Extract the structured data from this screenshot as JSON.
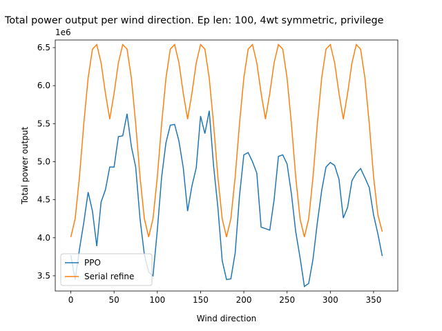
{
  "chart_data": {
    "type": "line",
    "title": "Total power output per wind direction. Ep len: 100, 4wt symmetric, privilege",
    "x_label": "Wind direction",
    "y_label": "Total power output",
    "y_offset_label": "1e6",
    "x": [
      0,
      5,
      10,
      15,
      20,
      25,
      30,
      35,
      40,
      45,
      50,
      55,
      60,
      65,
      70,
      75,
      80,
      85,
      90,
      95,
      100,
      105,
      110,
      115,
      120,
      125,
      130,
      135,
      140,
      145,
      150,
      155,
      160,
      165,
      170,
      175,
      180,
      185,
      190,
      195,
      200,
      205,
      210,
      215,
      220,
      225,
      230,
      235,
      240,
      245,
      250,
      255,
      260,
      265,
      270,
      275,
      280,
      285,
      290,
      295,
      300,
      305,
      310,
      315,
      320,
      325,
      330,
      335,
      340,
      345,
      350,
      355,
      360
    ],
    "series": [
      {
        "name": "PPO",
        "color": "#1f77b4",
        "values": [
          3.77,
          3.45,
          3.85,
          4.2,
          4.6,
          4.35,
          3.89,
          4.47,
          4.63,
          4.93,
          4.93,
          5.33,
          5.34,
          5.63,
          5.2,
          4.93,
          4.25,
          3.78,
          3.55,
          3.5,
          4.1,
          4.8,
          5.25,
          5.48,
          5.49,
          5.27,
          4.92,
          4.35,
          4.68,
          4.92,
          5.6,
          5.37,
          5.67,
          4.95,
          4.4,
          3.7,
          3.45,
          3.46,
          3.8,
          4.55,
          5.09,
          5.12,
          5.0,
          4.85,
          4.14,
          4.12,
          4.1,
          4.5,
          5.07,
          5.09,
          4.97,
          4.58,
          4.08,
          3.74,
          3.36,
          3.4,
          3.72,
          4.2,
          4.62,
          4.93,
          4.99,
          4.95,
          4.77,
          4.26,
          4.4,
          4.75,
          4.85,
          4.91,
          4.79,
          4.66,
          4.3,
          4.05,
          3.76
        ]
      },
      {
        "name": "Serial refine",
        "color": "#ff7f0e",
        "values": [
          4.01,
          4.25,
          4.8,
          5.5,
          6.1,
          6.48,
          6.54,
          6.3,
          5.9,
          5.56,
          5.9,
          6.3,
          6.54,
          6.48,
          6.1,
          5.5,
          4.8,
          4.25,
          4.01,
          4.25,
          4.8,
          5.5,
          6.1,
          6.48,
          6.54,
          6.3,
          5.9,
          5.56,
          5.9,
          6.3,
          6.54,
          6.48,
          6.1,
          5.5,
          4.8,
          4.25,
          4.01,
          4.25,
          4.8,
          5.5,
          6.1,
          6.48,
          6.54,
          6.3,
          5.9,
          5.56,
          5.9,
          6.3,
          6.54,
          6.48,
          6.1,
          5.5,
          4.8,
          4.25,
          4.01,
          4.25,
          4.8,
          5.5,
          6.1,
          6.48,
          6.54,
          6.3,
          5.9,
          5.56,
          5.9,
          6.3,
          6.54,
          6.48,
          6.1,
          5.5,
          4.8,
          4.3,
          4.08
        ]
      }
    ],
    "xlim": [
      -18,
      378
    ],
    "xticks": [
      0,
      50,
      100,
      150,
      200,
      250,
      300,
      350
    ],
    "ylim": [
      3.3,
      6.6
    ],
    "yticks": [
      3.5,
      {
        "value": 4,
        "label": "4.0"
      },
      4.5,
      {
        "value": 5,
        "label": "5.0"
      },
      5.5,
      {
        "value": 6,
        "label": "6.0"
      },
      6.5
    ],
    "legend": "lower left",
    "grid": false
  }
}
